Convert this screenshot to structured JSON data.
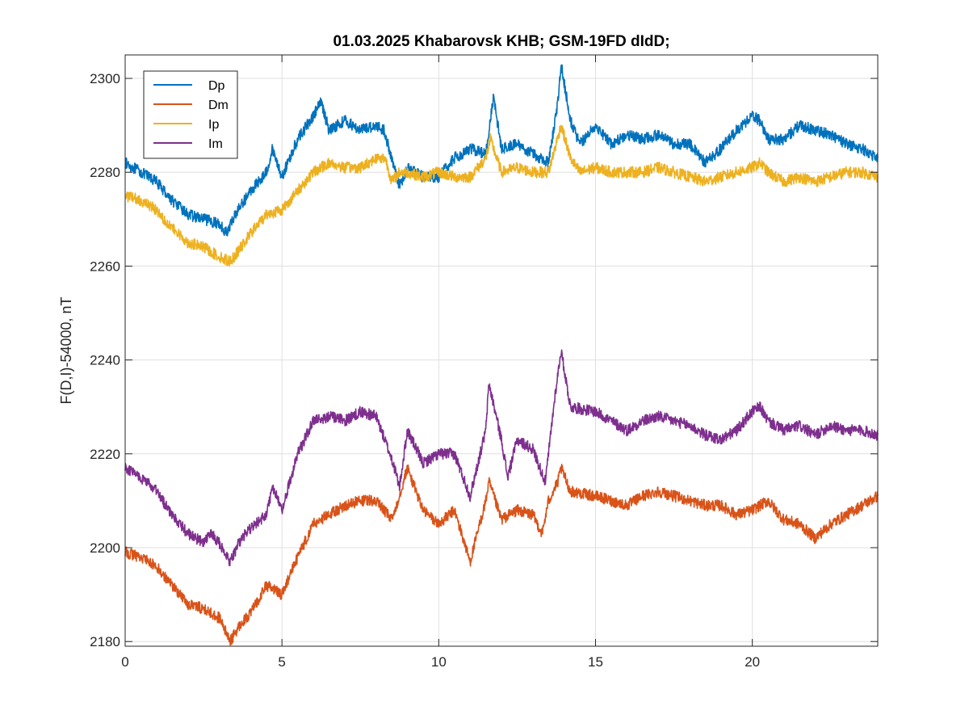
{
  "chart_data": {
    "type": "line",
    "title": "01.03.2025  Khabarovsk KHB; GSM-19FD dIdD;",
    "xlabel": "",
    "ylabel": "F(D,I)-54000, nT",
    "xlim": [
      0,
      24
    ],
    "ylim": [
      2179,
      2305
    ],
    "xticks": [
      0,
      5,
      10,
      15,
      20
    ],
    "yticks": [
      2180,
      2200,
      2220,
      2240,
      2260,
      2280,
      2300
    ],
    "grid": true,
    "legend_position": "top-left",
    "series": [
      {
        "name": "Dp",
        "color": "#0072BD",
        "x": [
          0,
          0.5,
          1,
          1.5,
          2,
          2.5,
          3,
          3.25,
          3.5,
          4,
          4.5,
          4.7,
          5,
          5.5,
          6,
          6.25,
          6.5,
          7,
          7.5,
          8,
          8.25,
          8.5,
          8.75,
          9,
          9.5,
          10,
          10.5,
          11,
          11.5,
          11.75,
          12,
          12.5,
          13,
          13.5,
          13.8,
          13.9,
          14.2,
          14.5,
          15,
          15.5,
          16,
          16.5,
          17,
          17.5,
          18,
          18.5,
          19,
          19.5,
          20,
          20.25,
          20.5,
          21,
          21.5,
          22,
          22.5,
          23,
          23.5,
          24
        ],
        "y": [
          2282,
          2280,
          2278,
          2274,
          2271,
          2270,
          2269,
          2267,
          2271,
          2276,
          2280,
          2285,
          2279,
          2287,
          2292,
          2295,
          2289,
          2291,
          2289,
          2290,
          2289,
          2283,
          2277,
          2281,
          2279,
          2279,
          2283,
          2285,
          2284,
          2296,
          2285,
          2286,
          2284,
          2282,
          2295,
          2303,
          2291,
          2286,
          2290,
          2286,
          2288,
          2287,
          2288,
          2286,
          2286,
          2282,
          2285,
          2289,
          2292,
          2291,
          2287,
          2287,
          2290,
          2289,
          2288,
          2286,
          2285,
          2283
        ]
      },
      {
        "name": "Dm",
        "color": "#D95319",
        "x": [
          0,
          0.5,
          1,
          1.5,
          2,
          2.5,
          3,
          3.35,
          3.7,
          4,
          4.5,
          5,
          5.5,
          6,
          6.5,
          7,
          7.5,
          8,
          8.5,
          8.7,
          9,
          9.5,
          10,
          10.5,
          11,
          11.5,
          11.6,
          12,
          12.5,
          13,
          13.3,
          13.5,
          13.8,
          13.9,
          14.2,
          15,
          15.5,
          16,
          16.5,
          17,
          17.5,
          18,
          18.5,
          19,
          19.5,
          20,
          20.25,
          20.5,
          21,
          21.5,
          22,
          22.5,
          23,
          23.5,
          24
        ],
        "y": [
          2199,
          2198,
          2196,
          2192,
          2188,
          2187,
          2185,
          2180,
          2184,
          2186,
          2192,
          2190,
          2198,
          2205,
          2207,
          2209,
          2210,
          2210,
          2206,
          2210,
          2217,
          2208,
          2205,
          2208,
          2197,
          2210,
          2214,
          2206,
          2208,
          2207,
          2203,
          2210,
          2214,
          2217,
          2212,
          2211,
          2210,
          2209,
          2211,
          2212,
          2211,
          2210,
          2209,
          2209,
          2207,
          2208,
          2209,
          2210,
          2206,
          2205,
          2202,
          2205,
          2207,
          2209,
          2211
        ]
      },
      {
        "name": "Ip",
        "color": "#EDB120",
        "x": [
          0,
          0.5,
          1,
          1.5,
          2,
          2.5,
          3,
          3.35,
          3.7,
          4,
          4.5,
          5,
          5.5,
          6,
          6.5,
          7,
          7.5,
          8,
          8.3,
          8.5,
          8.75,
          9,
          9.5,
          10,
          10.5,
          11,
          11.5,
          11.65,
          12,
          12.5,
          13,
          13.5,
          13.9,
          14.2,
          14.5,
          15,
          15.5,
          16,
          16.5,
          17,
          17.5,
          18,
          18.5,
          19,
          19.5,
          20,
          20.25,
          20.5,
          21,
          21.5,
          22,
          22.5,
          23,
          23.5,
          24
        ],
        "y": [
          2275,
          2274,
          2272,
          2268,
          2265,
          2264,
          2262,
          2261,
          2264,
          2267,
          2271,
          2272,
          2276,
          2280,
          2282,
          2281,
          2281,
          2283,
          2283,
          2278,
          2280,
          2280,
          2279,
          2280,
          2279,
          2279,
          2283,
          2287,
          2280,
          2281,
          2280,
          2280,
          2290,
          2283,
          2280,
          2281,
          2280,
          2280,
          2280,
          2281,
          2280,
          2279,
          2278,
          2279,
          2280,
          2281,
          2282,
          2280,
          2278,
          2279,
          2278,
          2279,
          2280,
          2280,
          2279
        ]
      },
      {
        "name": "Im",
        "color": "#7E2F8E",
        "x": [
          0,
          0.5,
          1,
          1.5,
          2,
          2.5,
          2.75,
          3,
          3.35,
          3.7,
          4,
          4.5,
          4.7,
          5,
          5.5,
          6,
          6.5,
          7,
          7.5,
          8,
          8.5,
          8.75,
          9,
          9.5,
          10,
          10.5,
          11,
          11.5,
          11.6,
          12,
          12.2,
          12.5,
          13,
          13.4,
          13.7,
          13.9,
          14.2,
          15,
          15.5,
          16,
          16.5,
          17,
          17.5,
          18,
          18.5,
          19,
          19.5,
          20,
          20.25,
          20.5,
          21,
          21.5,
          22,
          22.5,
          23,
          23.5,
          24
        ],
        "y": [
          2217,
          2215,
          2212,
          2207,
          2203,
          2201,
          2203,
          2201,
          2197,
          2202,
          2204,
          2207,
          2213,
          2208,
          2220,
          2227,
          2228,
          2227,
          2229,
          2228,
          2219,
          2213,
          2225,
          2218,
          2220,
          2220,
          2211,
          2225,
          2235,
          2223,
          2215,
          2223,
          2221,
          2214,
          2232,
          2242,
          2230,
          2229,
          2227,
          2225,
          2227,
          2228,
          2227,
          2226,
          2224,
          2223,
          2225,
          2229,
          2230,
          2227,
          2225,
          2226,
          2224,
          2226,
          2225,
          2225,
          2224
        ]
      }
    ]
  }
}
